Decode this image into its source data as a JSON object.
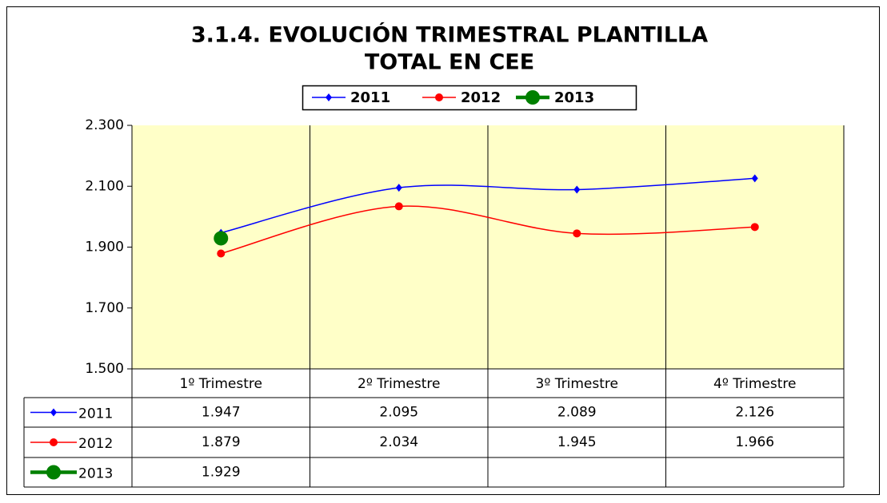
{
  "chart_data": {
    "type": "line",
    "title": "3.1.4. EVOLUCIÓN TRIMESTRAL PLANTILLA",
    "subtitle": "TOTAL EN CEE",
    "categories": [
      "1º Trimestre",
      "2º Trimestre",
      "3º Trimestre",
      "4º Trimestre"
    ],
    "series": [
      {
        "name": "2011",
        "color": "#0000ff",
        "values": [
          1947,
          2095,
          2089,
          2126
        ],
        "value_labels": [
          "1.947",
          "2.095",
          "2.089",
          "2.126"
        ]
      },
      {
        "name": "2012",
        "color": "#ff0000",
        "values": [
          1879,
          2034,
          1945,
          1966
        ],
        "value_labels": [
          "1.879",
          "2.034",
          "1.945",
          "1.966"
        ]
      },
      {
        "name": "2013",
        "color": "#008000",
        "values": [
          1929,
          null,
          null,
          null
        ],
        "value_labels": [
          "1.929",
          null,
          null,
          null
        ]
      }
    ],
    "ylim": [
      1500,
      2300
    ],
    "yticks": [
      {
        "value": 1500,
        "label": "1.500"
      },
      {
        "value": 1700,
        "label": "1.700"
      },
      {
        "value": 1900,
        "label": "1.900"
      },
      {
        "value": 2100,
        "label": "2.100"
      },
      {
        "value": 2300,
        "label": "2.300"
      }
    ],
    "legend": "top",
    "grid": false
  }
}
